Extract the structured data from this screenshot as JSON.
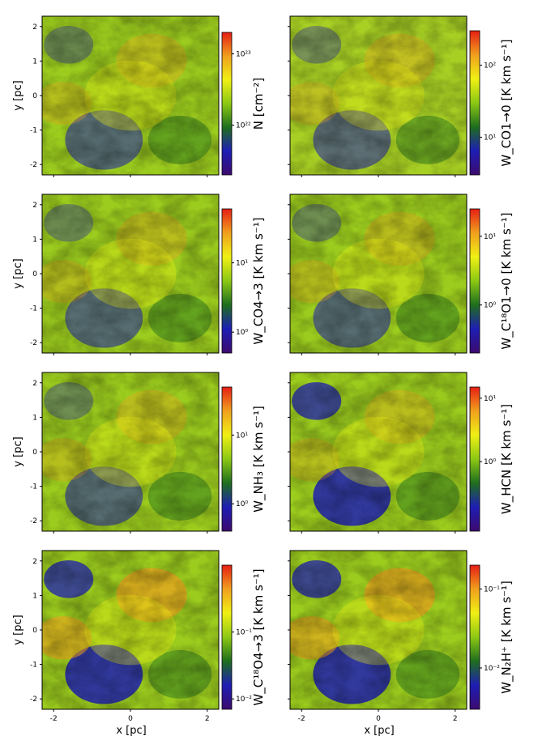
{
  "figure": {
    "x_axis_label": "x [pc]",
    "y_axis_label": "y [pc]",
    "x_tick_labels": [
      "-2",
      "0",
      "2"
    ],
    "y_tick_labels": [
      "2",
      "1",
      "0",
      "-1",
      "-2"
    ]
  },
  "chart_data": [
    {
      "type": "heatmap",
      "xlabel": "x [pc]",
      "ylabel": "y [pc]",
      "xlim": [
        -2.3,
        2.3
      ],
      "ylim": [
        -2.3,
        2.3
      ],
      "colorbar_label": "N [cm⁻²]",
      "colorbar_scale": "log",
      "colorbar_ticks": [
        "10²³",
        "10²²"
      ],
      "colorbar_tick_values": [
        1e+23,
        1e+22
      ],
      "colorbar_range": [
        2e+21,
        2e+23
      ],
      "colormap": [
        "#3c0a6e",
        "#1e1eb4",
        "#1e6e1e",
        "#8cc814",
        "#f0f014",
        "#f0a01e",
        "#e61e14"
      ]
    },
    {
      "type": "heatmap",
      "xlabel": "x [pc]",
      "ylabel": "y [pc]",
      "xlim": [
        -2.3,
        2.3
      ],
      "ylim": [
        -2.3,
        2.3
      ],
      "colorbar_label": "W_CO1→0 [K km s⁻¹]",
      "colorbar_scale": "log",
      "colorbar_ticks": [
        "10²",
        "10¹"
      ],
      "colorbar_tick_values": [
        100,
        10
      ],
      "colorbar_range": [
        3,
        300
      ],
      "colormap": [
        "#3c0a6e",
        "#1e1eb4",
        "#1e6e1e",
        "#8cc814",
        "#f0f014",
        "#f0a01e",
        "#e61e14"
      ]
    },
    {
      "type": "heatmap",
      "xlabel": "x [pc]",
      "ylabel": "y [pc]",
      "xlim": [
        -2.3,
        2.3
      ],
      "ylim": [
        -2.3,
        2.3
      ],
      "colorbar_label": "W_CO4→3 [K km s⁻¹]",
      "colorbar_scale": "log",
      "colorbar_ticks": [
        "10¹",
        "10⁰"
      ],
      "colorbar_tick_values": [
        10,
        1
      ],
      "colorbar_range": [
        0.5,
        60
      ],
      "colormap": [
        "#3c0a6e",
        "#1e1eb4",
        "#1e6e1e",
        "#8cc814",
        "#f0f014",
        "#f0a01e",
        "#e61e14"
      ]
    },
    {
      "type": "heatmap",
      "xlabel": "x [pc]",
      "ylabel": "y [pc]",
      "xlim": [
        -2.3,
        2.3
      ],
      "ylim": [
        -2.3,
        2.3
      ],
      "colorbar_label": "W_C¹⁸O1→0 [K km s⁻¹]",
      "colorbar_scale": "log",
      "colorbar_ticks": [
        "10¹",
        "10⁰"
      ],
      "colorbar_tick_values": [
        10,
        1
      ],
      "colorbar_range": [
        0.2,
        25
      ],
      "colormap": [
        "#3c0a6e",
        "#1e1eb4",
        "#1e6e1e",
        "#8cc814",
        "#f0f014",
        "#f0a01e",
        "#e61e14"
      ]
    },
    {
      "type": "heatmap",
      "xlabel": "x [pc]",
      "ylabel": "y [pc]",
      "xlim": [
        -2.3,
        2.3
      ],
      "ylim": [
        -2.3,
        2.3
      ],
      "colorbar_label": "W_NH₃ [K km s⁻¹]",
      "colorbar_scale": "log",
      "colorbar_ticks": [
        "10¹",
        "10⁰"
      ],
      "colorbar_tick_values": [
        10,
        1
      ],
      "colorbar_range": [
        0.4,
        50
      ],
      "colormap": [
        "#3c0a6e",
        "#1e1eb4",
        "#1e6e1e",
        "#8cc814",
        "#f0f014",
        "#f0a01e",
        "#e61e14"
      ]
    },
    {
      "type": "heatmap",
      "xlabel": "x [pc]",
      "ylabel": "y [pc]",
      "xlim": [
        -2.3,
        2.3
      ],
      "ylim": [
        -2.3,
        2.3
      ],
      "colorbar_label": "W_HCN [K km s⁻¹]",
      "colorbar_scale": "log",
      "colorbar_ticks": [
        "10¹",
        "10⁰"
      ],
      "colorbar_tick_values": [
        10,
        1
      ],
      "colorbar_range": [
        0.08,
        15
      ],
      "colormap": [
        "#3c0a6e",
        "#1e1eb4",
        "#1e6e1e",
        "#8cc814",
        "#f0f014",
        "#f0a01e",
        "#e61e14"
      ]
    },
    {
      "type": "heatmap",
      "xlabel": "x [pc]",
      "ylabel": "y [pc]",
      "xlim": [
        -2.3,
        2.3
      ],
      "ylim": [
        -2.3,
        2.3
      ],
      "colorbar_label": "W_C¹⁸O4→3 [K km s⁻¹]",
      "colorbar_scale": "log",
      "colorbar_ticks": [
        "10⁻¹",
        "10⁻²"
      ],
      "colorbar_tick_values": [
        0.1,
        0.01
      ],
      "colorbar_range": [
        0.007,
        1.0
      ],
      "colormap": [
        "#3c0a6e",
        "#1e1eb4",
        "#1e6e1e",
        "#8cc814",
        "#f0f014",
        "#f0a01e",
        "#e61e14"
      ]
    },
    {
      "type": "heatmap",
      "xlabel": "x [pc]",
      "ylabel": "y [pc]",
      "xlim": [
        -2.3,
        2.3
      ],
      "ylim": [
        -2.3,
        2.3
      ],
      "colorbar_label": "W_N₂H⁺ [K km s⁻¹]",
      "colorbar_scale": "log",
      "colorbar_ticks": [
        "10⁻¹",
        "10⁻²"
      ],
      "colorbar_tick_values": [
        0.1,
        0.01
      ],
      "colorbar_range": [
        0.003,
        0.2
      ],
      "colormap": [
        "#3c0a6e",
        "#1e1eb4",
        "#1e6e1e",
        "#8cc814",
        "#f0f014",
        "#f0a01e",
        "#e61e14"
      ]
    }
  ]
}
